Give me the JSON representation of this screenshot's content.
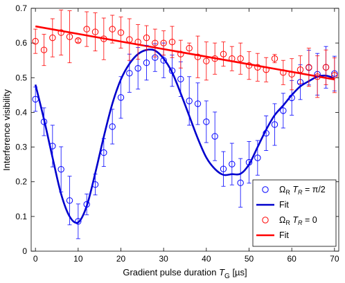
{
  "chart_data": {
    "type": "scatter",
    "xlabel": {
      "main": "Gradient pulse duration ",
      "var": "T",
      "sub": "G",
      "unit": " [µs]"
    },
    "ylabel": "Interference visibility",
    "xlim": [
      -1,
      71
    ],
    "ylim": [
      0,
      0.7
    ],
    "xticks": [
      0,
      10,
      20,
      30,
      40,
      50,
      60,
      70
    ],
    "yticks": [
      0,
      0.1,
      0.2,
      0.3,
      0.4,
      0.5,
      0.6,
      0.7
    ],
    "grid": false,
    "legend_position": "bottom-right",
    "series": [
      {
        "name": "ΩR TR = π/2",
        "legend": {
          "omega_sub": "R",
          "t_sub": "R",
          "value": " = π/2"
        },
        "kind": "points",
        "color": "#0000ff",
        "x": [
          0,
          2,
          4,
          6,
          8,
          10,
          12,
          14,
          16,
          18,
          20,
          22,
          24,
          26,
          28,
          30,
          32,
          34,
          36,
          38,
          40,
          42,
          44,
          46,
          48,
          50,
          52,
          54,
          56,
          58,
          60,
          62,
          64,
          66,
          68,
          70
        ],
        "y": [
          0.438,
          0.373,
          0.303,
          0.236,
          0.146,
          0.086,
          0.135,
          0.192,
          0.284,
          0.359,
          0.443,
          0.513,
          0.527,
          0.543,
          0.558,
          0.55,
          0.52,
          0.496,
          0.433,
          0.425,
          0.373,
          0.331,
          0.237,
          0.251,
          0.197,
          0.256,
          0.269,
          0.34,
          0.365,
          0.405,
          0.442,
          0.487,
          0.529,
          0.51,
          0.53,
          0.512
        ],
        "err": [
          0.035,
          0.04,
          0.06,
          0.065,
          0.07,
          0.05,
          0.03,
          0.03,
          0.04,
          0.05,
          0.06,
          0.055,
          0.06,
          0.05,
          0.04,
          0.05,
          0.045,
          0.05,
          0.07,
          0.06,
          0.06,
          0.07,
          0.05,
          0.06,
          0.07,
          0.06,
          0.05,
          0.05,
          0.06,
          0.05,
          0.05,
          0.05,
          0.05,
          0.06,
          0.06,
          0.05
        ]
      },
      {
        "name": "Fit",
        "kind": "line",
        "color": "#0000cc",
        "x": [
          0,
          2,
          4,
          6,
          8,
          10,
          12,
          14,
          16,
          18,
          20,
          22,
          24,
          26,
          28,
          30,
          32,
          34,
          36,
          38,
          40,
          42,
          44,
          46,
          48,
          50,
          52,
          54,
          56,
          58,
          60,
          62,
          64,
          66,
          68,
          70
        ],
        "y": [
          0.48,
          0.38,
          0.27,
          0.165,
          0.1,
          0.083,
          0.13,
          0.225,
          0.33,
          0.425,
          0.495,
          0.54,
          0.568,
          0.58,
          0.578,
          0.555,
          0.515,
          0.455,
          0.39,
          0.325,
          0.27,
          0.237,
          0.22,
          0.222,
          0.223,
          0.25,
          0.3,
          0.35,
          0.392,
          0.42,
          0.45,
          0.475,
          0.49,
          0.503,
          0.506,
          0.498
        ]
      },
      {
        "name": "ΩR TR = 0",
        "legend": {
          "omega_sub": "R",
          "t_sub": "R",
          "value": " = 0"
        },
        "kind": "points",
        "color": "#ff0000",
        "x": [
          0,
          2,
          4,
          6,
          8,
          10,
          12,
          14,
          16,
          18,
          20,
          22,
          24,
          26,
          28,
          30,
          32,
          34,
          36,
          38,
          40,
          42,
          44,
          46,
          48,
          50,
          52,
          54,
          56,
          58,
          60,
          62,
          64,
          66,
          68,
          70
        ],
        "y": [
          0.605,
          0.58,
          0.615,
          0.63,
          0.618,
          0.607,
          0.64,
          0.632,
          0.612,
          0.64,
          0.63,
          0.61,
          0.603,
          0.615,
          0.6,
          0.6,
          0.603,
          0.568,
          0.585,
          0.56,
          0.548,
          0.555,
          0.568,
          0.555,
          0.555,
          0.535,
          0.53,
          0.523,
          0.555,
          0.515,
          0.51,
          0.523,
          0.53,
          0.503,
          0.53,
          0.507
        ],
        "err": [
          0.035,
          0.045,
          0.055,
          0.065,
          0.075,
          0.005,
          0.05,
          0.055,
          0.06,
          0.04,
          0.045,
          0.06,
          0.05,
          0.035,
          0.04,
          0.035,
          0.045,
          0.04,
          0.015,
          0.06,
          0.055,
          0.045,
          0.035,
          0.035,
          0.045,
          0.04,
          0.04,
          0.035,
          0.012,
          0.035,
          0.045,
          0.04,
          0.055,
          0.06,
          0.05,
          0.05
        ]
      },
      {
        "name": "Fit",
        "kind": "line",
        "color": "#ff0000",
        "x": [
          0,
          70
        ],
        "y": [
          0.648,
          0.495
        ]
      }
    ]
  }
}
